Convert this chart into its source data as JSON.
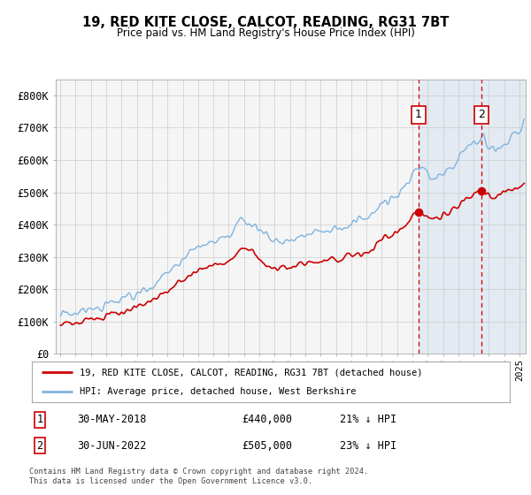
{
  "title": "19, RED KITE CLOSE, CALCOT, READING, RG31 7BT",
  "subtitle": "Price paid vs. HM Land Registry's House Price Index (HPI)",
  "ylabel_ticks": [
    "£0",
    "£100K",
    "£200K",
    "£300K",
    "£400K",
    "£500K",
    "£600K",
    "£700K",
    "£800K"
  ],
  "ylim": [
    0,
    850000
  ],
  "xlim_start": 1994.7,
  "xlim_end": 2025.4,
  "hpi_color": "#7eb3e0",
  "price_color": "#cc0000",
  "sale1_date": 2018.41,
  "sale1_price": 440000,
  "sale2_date": 2022.5,
  "sale2_price": 505000,
  "legend_entry1": "19, RED KITE CLOSE, CALCOT, READING, RG31 7BT (detached house)",
  "legend_entry2": "HPI: Average price, detached house, West Berkshire",
  "footer": "Contains HM Land Registry data © Crown copyright and database right 2024.\nThis data is licensed under the Open Government Licence v3.0.",
  "bg_highlight_color": "#dce6f1",
  "chart_bg": "#f5f5f5",
  "grid_color": "#cccccc"
}
